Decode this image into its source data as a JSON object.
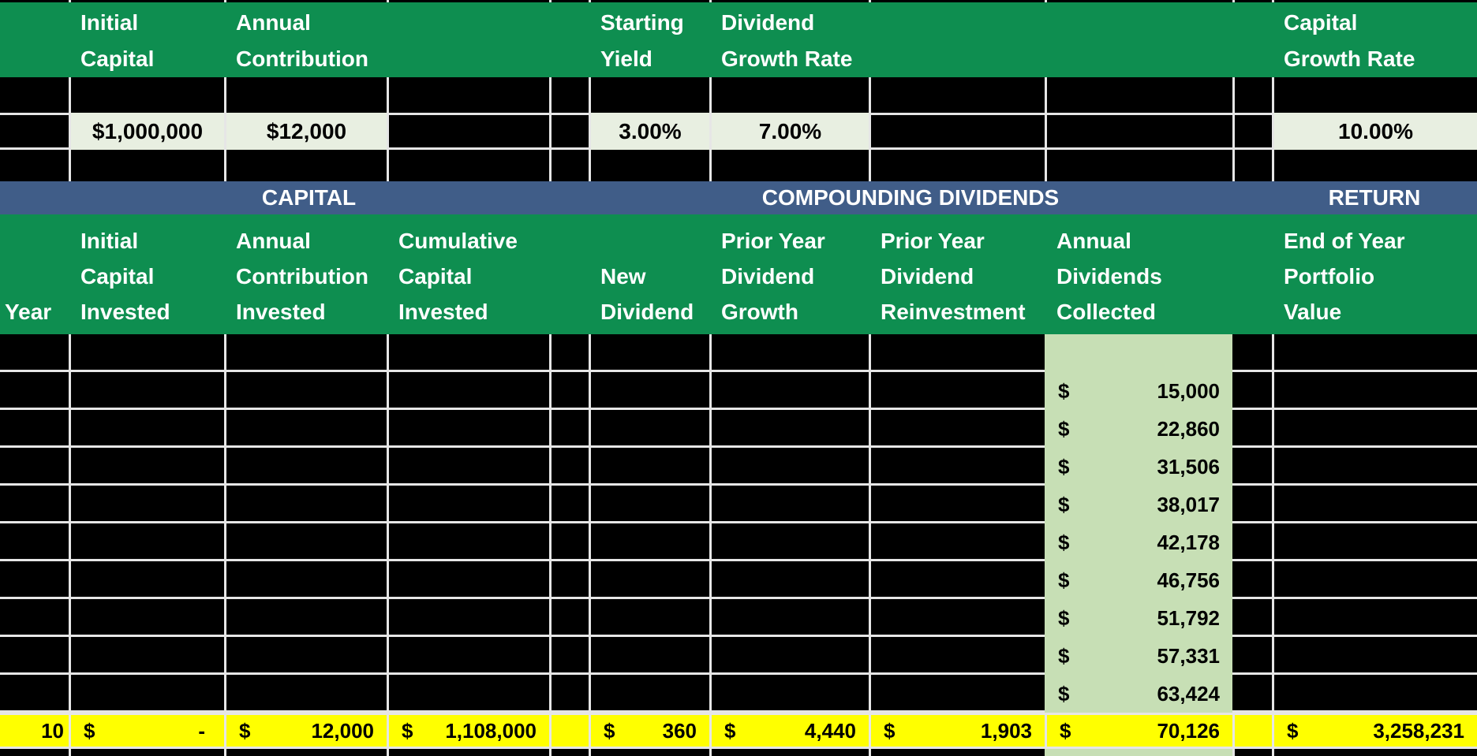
{
  "colors": {
    "header_green": "#0e8e50",
    "section_band_blue": "#405d88",
    "input_cell_green": "#e8efe1",
    "dividend_column_green": "#c7dfb5",
    "total_row_yellow": "#ffff00",
    "gridline": "#e6e6e6",
    "empty_cell_black": "#000000"
  },
  "settings": {
    "initial_capital": {
      "label": [
        "Initial",
        "Capital"
      ],
      "value": "$1,000,000"
    },
    "annual_contribution": {
      "label": [
        "Annual",
        "Contribution"
      ],
      "value": "$12,000"
    },
    "starting_yield": {
      "label": [
        "Starting",
        "Yield"
      ],
      "value": "3.00%"
    },
    "dividend_growth_rate": {
      "label": [
        "Dividend",
        "Growth Rate"
      ],
      "value": "7.00%"
    },
    "capital_growth_rate": {
      "label": [
        "Capital",
        "Growth Rate"
      ],
      "value": "10.00%"
    }
  },
  "sections": {
    "capital": "CAPITAL",
    "compounding_dividends": "COMPOUNDING DIVIDENDS",
    "return": "RETURN"
  },
  "table": {
    "headers": {
      "year": [
        "",
        "",
        "Year"
      ],
      "initial_capital_invested": [
        "Initial",
        "Capital",
        "Invested"
      ],
      "annual_contribution_invested": [
        "Annual",
        "Contribution",
        "Invested"
      ],
      "cumulative_capital_invested": [
        "Cumulative",
        "Capital",
        "Invested"
      ],
      "new_dividend": [
        "",
        "New",
        "Dividend"
      ],
      "prior_year_dividend_growth": [
        "Prior Year",
        "Dividend",
        "Growth"
      ],
      "prior_year_dividend_reinvestment": [
        "Prior Year",
        "Dividend",
        "Reinvestment"
      ],
      "annual_dividends_collected": [
        "Annual",
        "Dividends",
        "Collected"
      ],
      "end_of_year_portfolio_value": [
        "End of Year",
        "Portfolio",
        "Value"
      ]
    },
    "dividends_collected_column": [
      {
        "currency": "",
        "amount": ""
      },
      {
        "currency": "$",
        "amount": "15,000"
      },
      {
        "currency": "$",
        "amount": "22,860"
      },
      {
        "currency": "$",
        "amount": "31,506"
      },
      {
        "currency": "$",
        "amount": "38,017"
      },
      {
        "currency": "$",
        "amount": "42,178"
      },
      {
        "currency": "$",
        "amount": "46,756"
      },
      {
        "currency": "$",
        "amount": "51,792"
      },
      {
        "currency": "$",
        "amount": "57,331"
      },
      {
        "currency": "$",
        "amount": "63,424"
      }
    ],
    "total_row": {
      "year": "10",
      "initial_capital_invested": {
        "currency": "$",
        "amount": "-"
      },
      "annual_contribution_invested": {
        "currency": "$",
        "amount": "12,000"
      },
      "cumulative_capital_invested": {
        "currency": "$",
        "amount": "1,108,000"
      },
      "new_dividend": {
        "currency": "$",
        "amount": "360"
      },
      "prior_year_dividend_growth": {
        "currency": "$",
        "amount": "4,440"
      },
      "prior_year_dividend_reinvestment": {
        "currency": "$",
        "amount": "1,903"
      },
      "annual_dividends_collected": {
        "currency": "$",
        "amount": "70,126"
      },
      "end_of_year_portfolio_value": {
        "currency": "$",
        "amount": "3,258,231"
      }
    }
  }
}
